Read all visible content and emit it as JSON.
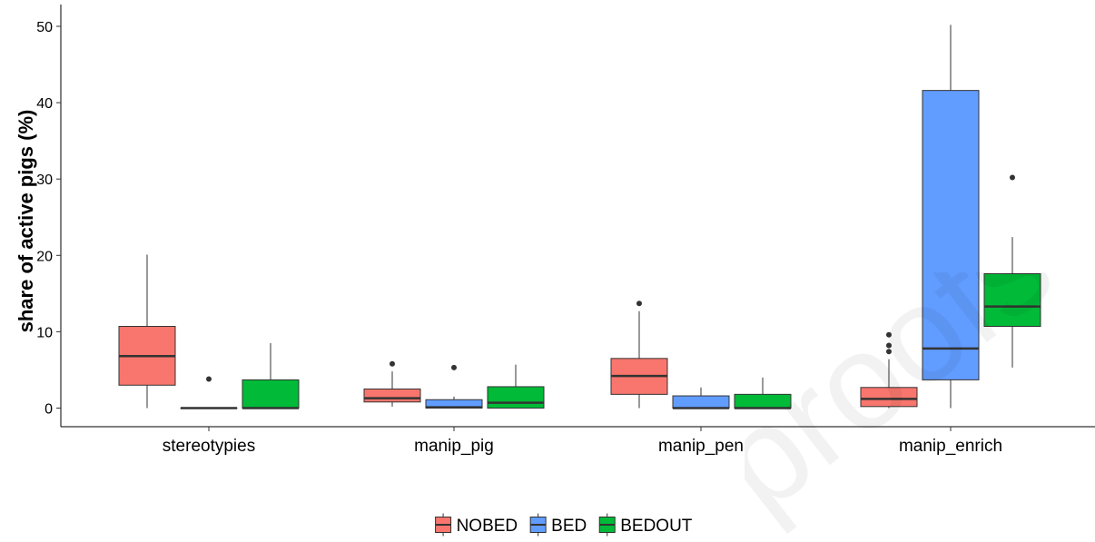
{
  "chart_data": {
    "type": "boxplot",
    "ylabel": "share of active pigs (%)",
    "xlabel": "",
    "ylim": [
      -1,
      51
    ],
    "yticks": [
      0,
      10,
      20,
      30,
      40,
      50
    ],
    "categories": [
      "stereotypies",
      "manip_pig",
      "manip_pen",
      "manip_enrich"
    ],
    "legend_position": "bottom",
    "series": [
      {
        "name": "NOBED",
        "color": "#F8766D",
        "boxes": [
          {
            "category": "stereotypies",
            "lower_whisker": 0,
            "q1": 3.0,
            "median": 6.8,
            "q3": 10.7,
            "upper_whisker": 20.1,
            "outliers": []
          },
          {
            "category": "manip_pig",
            "lower_whisker": 0.2,
            "q1": 0.8,
            "median": 1.3,
            "q3": 2.5,
            "upper_whisker": 4.8,
            "outliers": [
              5.8
            ]
          },
          {
            "category": "manip_pen",
            "lower_whisker": 0,
            "q1": 1.8,
            "median": 4.2,
            "q3": 6.5,
            "upper_whisker": 12.7,
            "outliers": [
              13.7
            ]
          },
          {
            "category": "manip_enrich",
            "lower_whisker": 0,
            "q1": 0.2,
            "median": 1.2,
            "q3": 2.7,
            "upper_whisker": 6.4,
            "outliers": [
              7.4,
              8.2,
              9.6
            ]
          }
        ]
      },
      {
        "name": "BED",
        "color": "#619CFF",
        "boxes": [
          {
            "category": "stereotypies",
            "lower_whisker": 0,
            "q1": 0,
            "median": 0,
            "q3": 0,
            "upper_whisker": 0,
            "outliers": [
              3.8
            ]
          },
          {
            "category": "manip_pig",
            "lower_whisker": 0,
            "q1": 0,
            "median": 0.1,
            "q3": 1.1,
            "upper_whisker": 1.5,
            "outliers": [
              5.3
            ]
          },
          {
            "category": "manip_pen",
            "lower_whisker": 0,
            "q1": 0,
            "median": 0,
            "q3": 1.6,
            "upper_whisker": 2.7,
            "outliers": []
          },
          {
            "category": "manip_enrich",
            "lower_whisker": 0,
            "q1": 3.7,
            "median": 7.8,
            "q3": 41.6,
            "upper_whisker": 50.2,
            "outliers": []
          }
        ]
      },
      {
        "name": "BEDOUT",
        "color": "#00BA38",
        "boxes": [
          {
            "category": "stereotypies",
            "lower_whisker": 0,
            "q1": 0,
            "median": 0,
            "q3": 3.7,
            "upper_whisker": 8.5,
            "outliers": []
          },
          {
            "category": "manip_pig",
            "lower_whisker": 0,
            "q1": 0,
            "median": 0.7,
            "q3": 2.8,
            "upper_whisker": 5.7,
            "outliers": []
          },
          {
            "category": "manip_pen",
            "lower_whisker": 0,
            "q1": 0,
            "median": 0,
            "q3": 1.8,
            "upper_whisker": 4.0,
            "outliers": []
          },
          {
            "category": "manip_enrich",
            "lower_whisker": 5.3,
            "q1": 10.7,
            "median": 13.3,
            "q3": 17.6,
            "upper_whisker": 22.4,
            "outliers": [
              30.2
            ]
          }
        ]
      }
    ]
  },
  "watermark": {
    "text": "proofs"
  }
}
